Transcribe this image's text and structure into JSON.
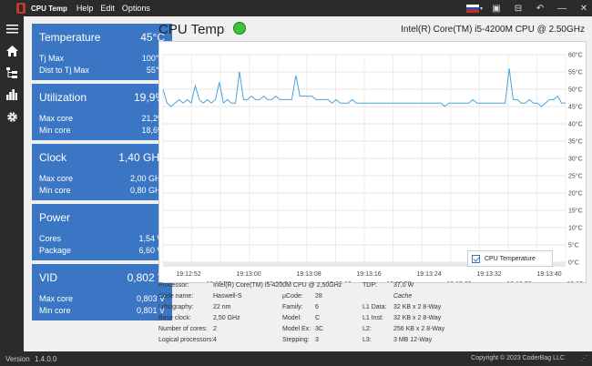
{
  "app": {
    "title": "CPU Temp",
    "menu": [
      "Help",
      "Edit",
      "Options"
    ]
  },
  "cards": [
    {
      "title": "Temperature",
      "value": "45°C",
      "rows": [
        {
          "label": "Tj Max",
          "value": "100°C"
        },
        {
          "label": "Dist to Tj Max",
          "value": "55°C"
        }
      ]
    },
    {
      "title": "Utilization",
      "value": "19,9%",
      "rows": [
        {
          "label": "Max core",
          "value": "21,2%"
        },
        {
          "label": "Min core",
          "value": "18,6%"
        }
      ]
    },
    {
      "title": "Clock",
      "value": "1,40 GHz",
      "rows": [
        {
          "label": "Max core",
          "value": "2,00 GHz"
        },
        {
          "label": "Min core",
          "value": "0,80 GHz"
        }
      ]
    },
    {
      "title": "Power",
      "value": "",
      "rows": [
        {
          "label": "Cores",
          "value": "1,54 W"
        },
        {
          "label": "Package",
          "value": "6,60 W"
        }
      ]
    },
    {
      "title": "VID",
      "value": "0,802 V",
      "rows": [
        {
          "label": "Max core",
          "value": "0,803 V"
        },
        {
          "label": "Min core",
          "value": "0,801 V"
        }
      ]
    }
  ],
  "header": {
    "chart_title": "CPU Temp",
    "cpu_name": "Intel(R) Core(TM) i5-4200M CPU @ 2.50GHz"
  },
  "chart_data": {
    "type": "line",
    "legend": "CPU Temperature",
    "y_ticks": [
      "60°C",
      "55°C",
      "50°C",
      "45°C",
      "40°C",
      "35°C",
      "30°C",
      "25°C",
      "20°C",
      "15°C",
      "10°C",
      "5°C",
      "0°C"
    ],
    "ylim": [
      0,
      60
    ],
    "x_ticks_top": [
      "19:12:52",
      "19:13:00",
      "19:13:08",
      "19:13:16",
      "19:13:24",
      "19:13:32",
      "19:13:40"
    ],
    "x_ticks_bottom": [
      "19:12:56",
      "19:13:04",
      "19:13:12",
      "19:13:20",
      "19:13:28",
      "19:13:36",
      "19:13:44"
    ],
    "series": [
      {
        "name": "CPU Temperature",
        "values": [
          50,
          46,
          45,
          46,
          47,
          46,
          47,
          46,
          51,
          47,
          46,
          47,
          46,
          47,
          52,
          46,
          47,
          46,
          46,
          55,
          47,
          47,
          48,
          47,
          47,
          48,
          47,
          47,
          48,
          47,
          47,
          47,
          47,
          54,
          48,
          48,
          48,
          48,
          47,
          47,
          47,
          47,
          46,
          47,
          46,
          46,
          46,
          47,
          46,
          46,
          46,
          46,
          46,
          46,
          46,
          46,
          46,
          46,
          46,
          46,
          46,
          46,
          46,
          46,
          46,
          46,
          46,
          46,
          46,
          46,
          45,
          46,
          46,
          46,
          46,
          46,
          46,
          47,
          46,
          46,
          46,
          46,
          46,
          46,
          46,
          46,
          56,
          47,
          47,
          46,
          46,
          47,
          46,
          46,
          45,
          46,
          47,
          47,
          48,
          46,
          46
        ]
      }
    ]
  },
  "info": {
    "col1": [
      {
        "label": "Processor:",
        "value": "Intel(R) Core(TM) i5-4200M CPU @ 2,50GHz"
      },
      {
        "label": "Code name:",
        "value": "Haswell-S"
      },
      {
        "label": "Lithography:",
        "value": "22 nm"
      },
      {
        "label": "Base clock:",
        "value": "2,50 GHz"
      },
      {
        "label": "Number of cores:",
        "value": "2"
      },
      {
        "label": "Logical processors:",
        "value": "4"
      }
    ],
    "col2": [
      {
        "label": "",
        "value": ""
      },
      {
        "label": "µCode:",
        "value": "28"
      },
      {
        "label": "Family:",
        "value": "6"
      },
      {
        "label": "Model:",
        "value": "C"
      },
      {
        "label": "Model Ex:",
        "value": "3C"
      },
      {
        "label": "Stepping:",
        "value": "3"
      }
    ],
    "tdp_label": "TDP:",
    "tdp_value": "37,0 W",
    "cache_title": "Cache",
    "cache": [
      {
        "label": "L1 Data:",
        "value": "32 KB x 2  8-Way"
      },
      {
        "label": "L1 Inst:",
        "value": "32 KB x 2  8-Way"
      },
      {
        "label": "L2:",
        "value": "256 KB x 2  8-Way"
      },
      {
        "label": "L3:",
        "value": "3 MB  12-Way"
      }
    ]
  },
  "status": {
    "version_label": "Version",
    "version": "1.4.0.0",
    "copyright": "Copyright © 2023 CoderBag LLC"
  },
  "colors": {
    "card": "#3a76c4",
    "line": "#4aa3d8",
    "ok": "#3cc23c"
  }
}
